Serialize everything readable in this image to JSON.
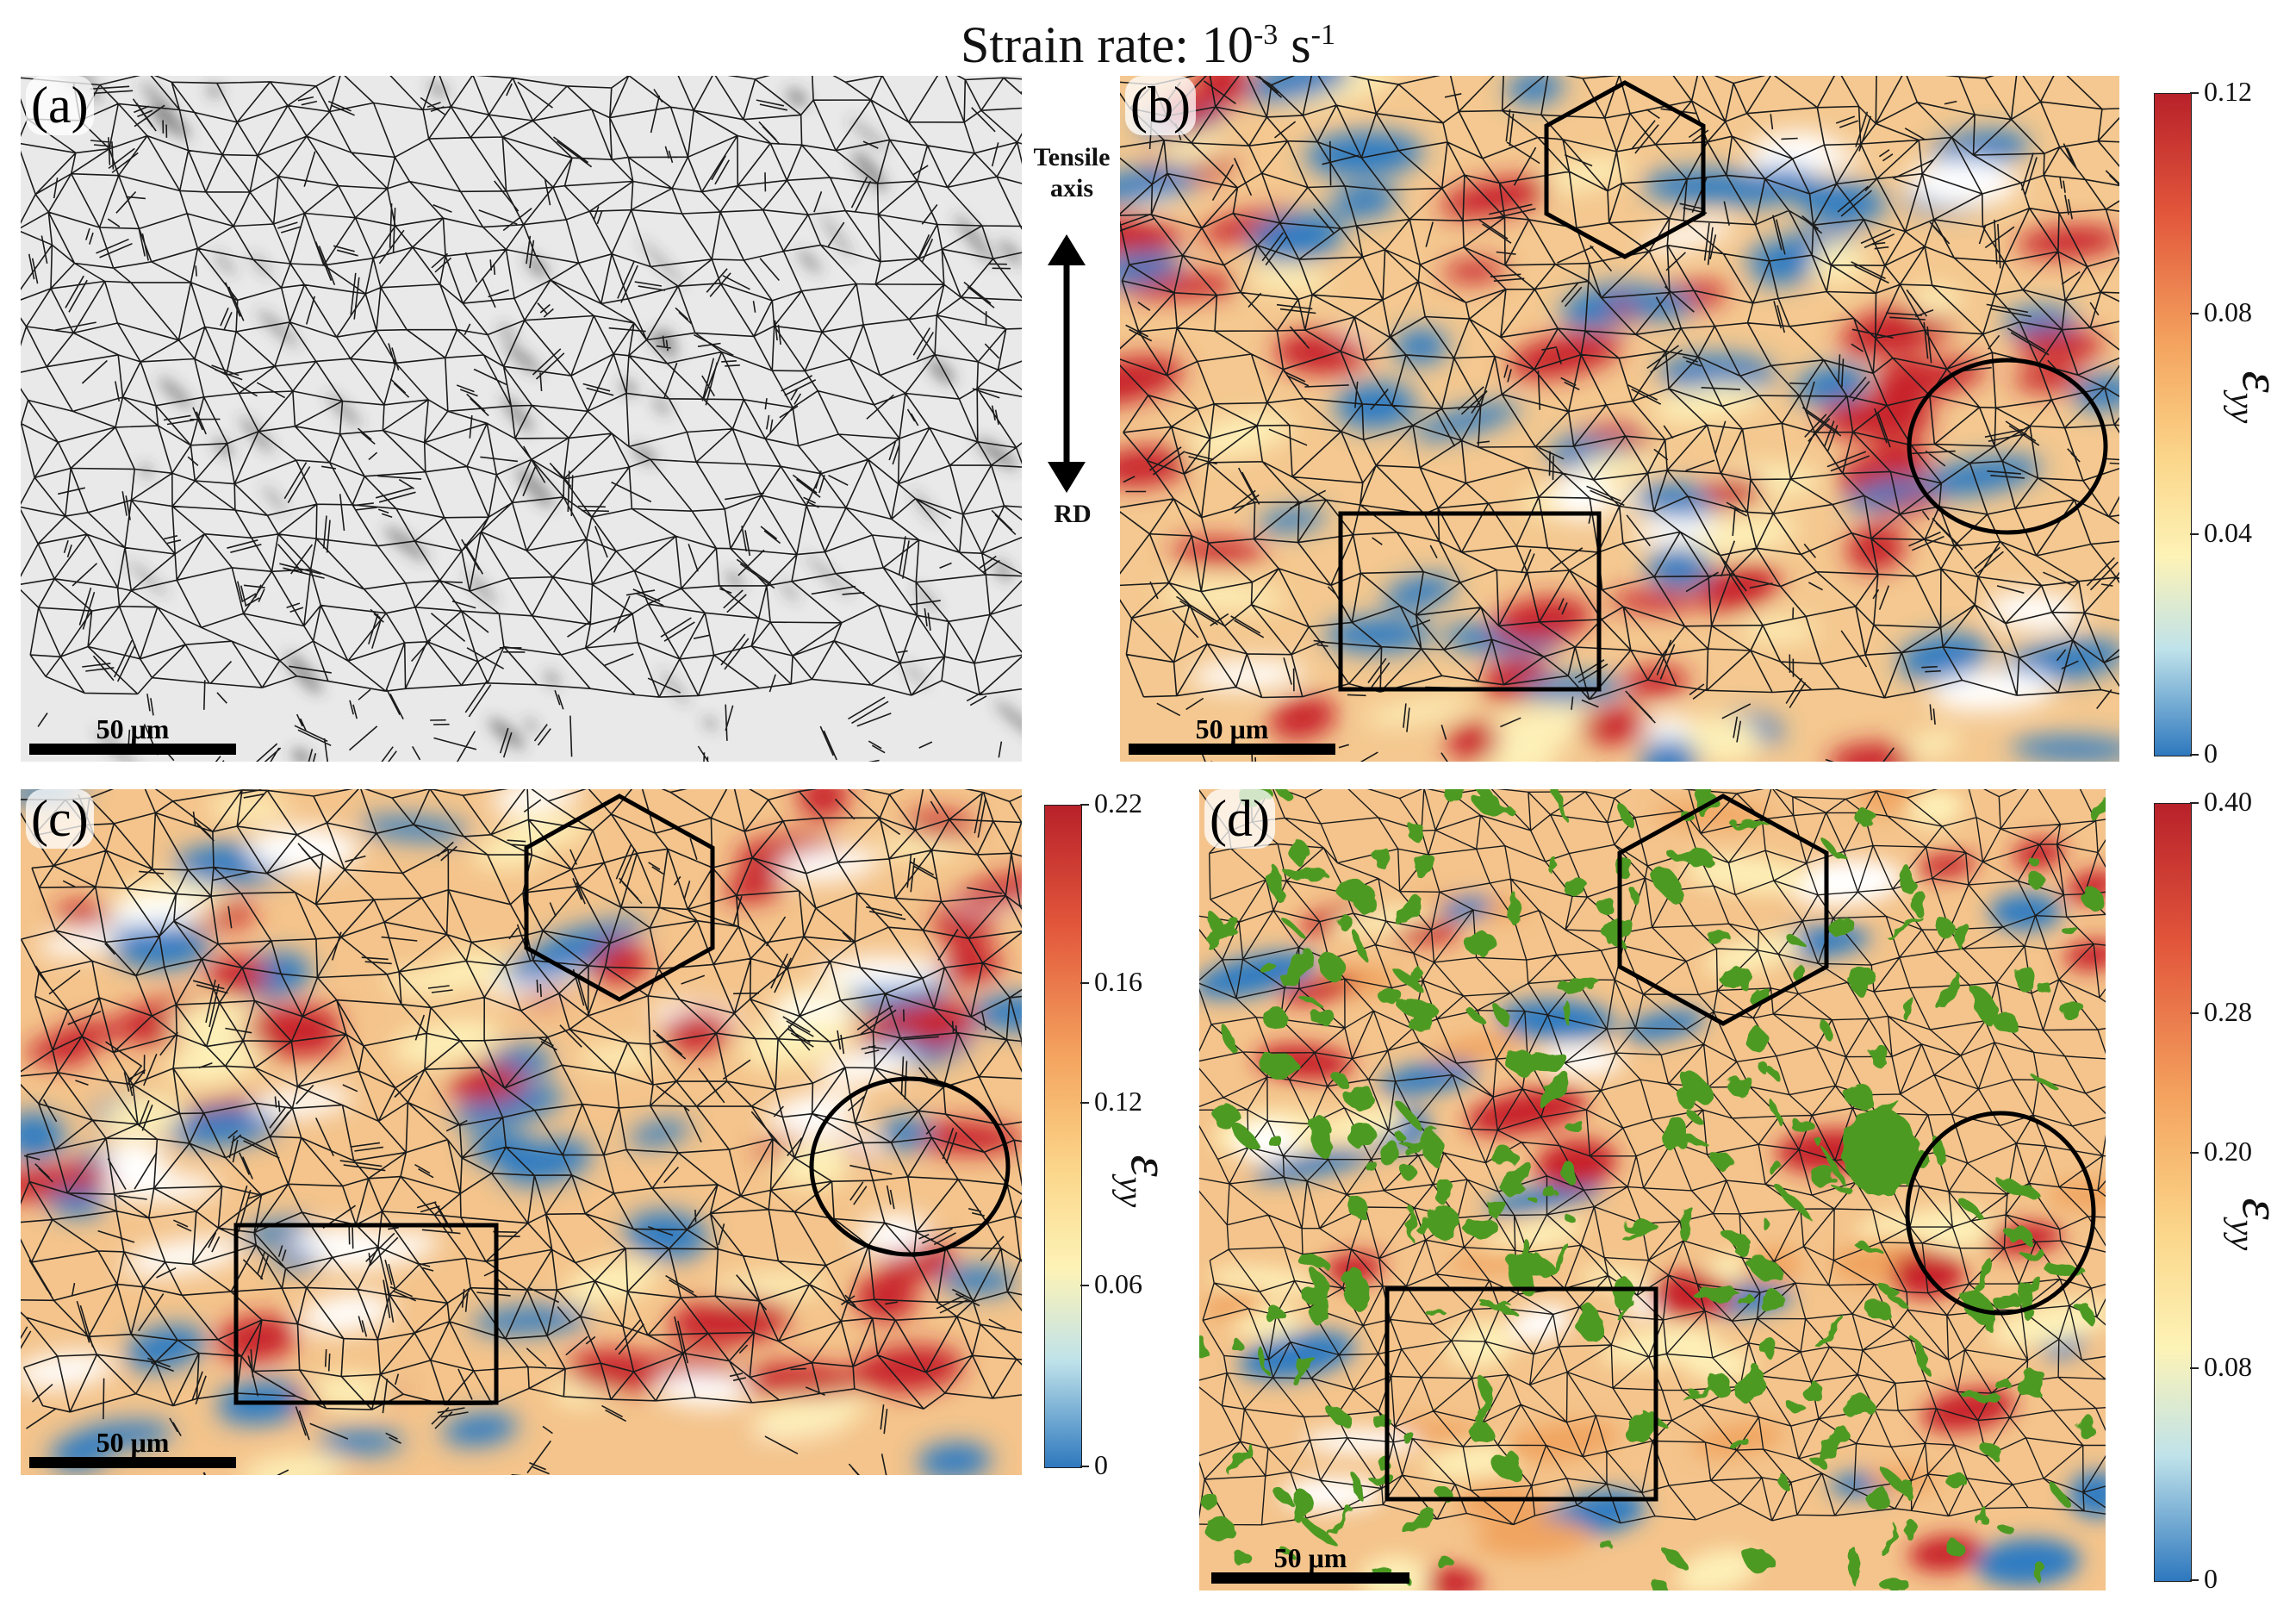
{
  "title": {
    "prefix": "Strain rate: 10",
    "exp": "-3",
    "mid": " s",
    "exp2": "-1"
  },
  "panels": [
    {
      "label": "(a)",
      "scalebar": "50 μm"
    },
    {
      "label": "(b)",
      "scalebar": "50 μm"
    },
    {
      "label": "(c)",
      "scalebar": "50 μm"
    },
    {
      "label": "(d)",
      "scalebar": "50 μm"
    }
  ],
  "tensile_axis": {
    "top": "Tensile\naxis",
    "top1": "Tensile",
    "top2": "axis",
    "bottom": "RD"
  },
  "colorbars": [
    {
      "ticks": [
        "0.12",
        "0.08",
        "0.04",
        "0"
      ],
      "symbol": "ε",
      "sub": "yy"
    },
    {
      "ticks": [
        "0.22",
        "0.16",
        "0.12",
        "0.06",
        "0"
      ],
      "symbol": "ε",
      "sub": "yy"
    },
    {
      "ticks": [
        "0.40",
        "0.28",
        "0.20",
        "0.08",
        "0"
      ],
      "symbol": "ε",
      "sub": "yy"
    }
  ],
  "colors": {
    "high": "#c8202a",
    "low": "#2f7bc2",
    "mid": "#fdf0b8",
    "phase": "#4e9a22",
    "grain_boundary": "#1b1b1b"
  }
}
